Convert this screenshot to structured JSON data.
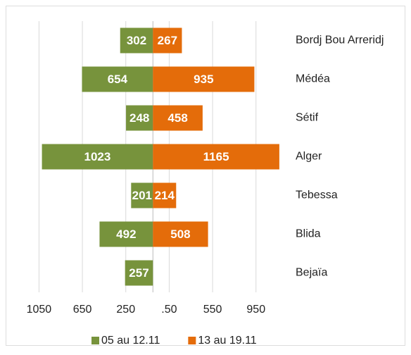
{
  "chart_data": {
    "type": "butterfly",
    "categories": [
      "Bordj Bou Arreridj",
      "Médéa",
      "Sétif",
      "Alger",
      "Tebessa",
      "Blida",
      "Bejaïa"
    ],
    "series": [
      {
        "name": "05 au 12.11",
        "color": "#77933c",
        "side": "left",
        "values": [
          302,
          654,
          248,
          1023,
          201,
          492,
          257
        ]
      },
      {
        "name": "13 au 19.11",
        "color": "#e46c0a",
        "side": "right",
        "values": [
          267,
          935,
          458,
          1165,
          214,
          508,
          null
        ]
      }
    ],
    "xlim": [
      -1150,
      1250
    ],
    "xticks": [
      {
        "value": -1050,
        "label": "1050"
      },
      {
        "value": -650,
        "label": "650"
      },
      {
        "value": -250,
        "label": "250"
      },
      {
        "value": 150,
        "label": ".50"
      },
      550,
      950
    ],
    "grid": true,
    "legend": "bottom"
  }
}
